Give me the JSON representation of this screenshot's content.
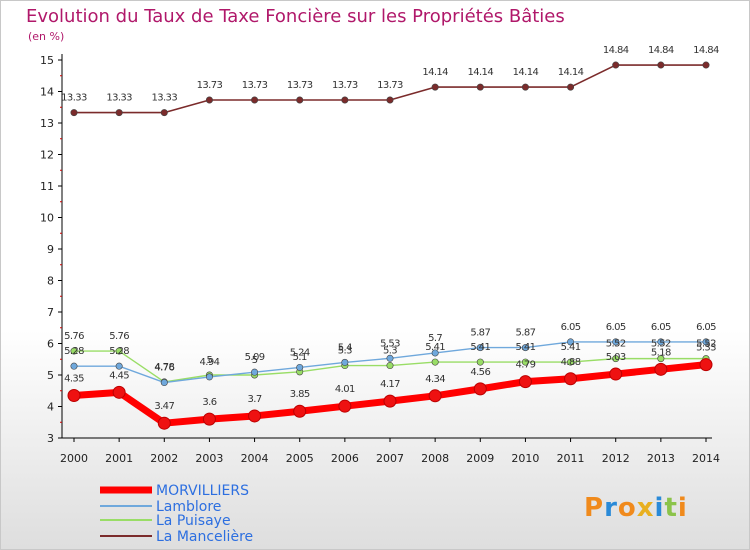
{
  "chart_data": {
    "type": "line",
    "title": "Evolution du Taux de Taxe Foncière sur les Propriétés Bâties",
    "subtitle": "(en %)",
    "xlabel": "",
    "ylabel": "",
    "x": [
      "2000",
      "2001",
      "2002",
      "2003",
      "2004",
      "2005",
      "2006",
      "2007",
      "2008",
      "2009",
      "2010",
      "2011",
      "2012",
      "2013",
      "2014"
    ],
    "yticks": [
      "3",
      "4",
      "5",
      "6",
      "7",
      "8",
      "9",
      "10",
      "11",
      "12",
      "13",
      "14",
      "15"
    ],
    "ylim": [
      3,
      15
    ],
    "grid": false,
    "legend_position": "bottom-left",
    "series": [
      {
        "name": "MORVILLIERS",
        "color": "#ff0000",
        "values": [
          4.35,
          4.45,
          3.47,
          3.6,
          3.7,
          3.85,
          4.01,
          4.17,
          4.34,
          4.56,
          4.79,
          4.88,
          5.03,
          5.18,
          5.33
        ],
        "labels": [
          "4.35",
          "4.45",
          "3.47",
          "3.6",
          "3.7",
          "3.85",
          "4.01",
          "4.17",
          "4.34",
          "4.56",
          "4.79",
          "4.88",
          "5.03",
          "5.18",
          "5.33"
        ]
      },
      {
        "name": "Lamblore",
        "color": "#6fa8dc",
        "values": [
          5.28,
          5.28,
          4.76,
          4.94,
          5.09,
          5.24,
          5.4,
          5.53,
          5.7,
          5.87,
          5.87,
          6.05,
          6.05,
          6.05,
          6.05
        ],
        "labels": [
          "5.28",
          "5.28",
          "4.76",
          "4.94",
          "5.09",
          "5.24",
          "5.4",
          "5.53",
          "5.7",
          "5.87",
          "5.87",
          "6.05",
          "6.05",
          "6.05",
          "6.05"
        ]
      },
      {
        "name": "La Puisaye",
        "color": "#99dd66",
        "values": [
          5.76,
          5.76,
          4.78,
          5.0,
          5.0,
          5.1,
          5.3,
          5.3,
          5.41,
          5.41,
          5.41,
          5.41,
          5.52,
          5.52,
          5.52
        ],
        "labels": [
          "5.76",
          "5.76",
          "4.78",
          "5",
          "5",
          "5.1",
          "5.3",
          "5.3",
          "5.41",
          "5.41",
          "5.41",
          "5.41",
          "5.52",
          "5.52",
          "5.52"
        ]
      },
      {
        "name": "La Mancelière",
        "color": "#7b2b2b",
        "values": [
          13.33,
          13.33,
          13.33,
          13.73,
          13.73,
          13.73,
          13.73,
          13.73,
          14.14,
          14.14,
          14.14,
          14.14,
          14.84,
          14.84,
          14.84
        ],
        "labels": [
          "13.33",
          "13.33",
          "13.33",
          "13.73",
          "13.73",
          "13.73",
          "13.73",
          "13.73",
          "14.14",
          "14.14",
          "14.14",
          "14.14",
          "14.84",
          "14.84",
          "14.84"
        ]
      }
    ]
  },
  "logo": {
    "text": "Proxiti",
    "colors": [
      "#f08a1c",
      "#2a8ad8",
      "#f08a1c",
      "#e8b020",
      "#2a8ad8",
      "#8bc34a",
      "#f08a1c"
    ]
  }
}
